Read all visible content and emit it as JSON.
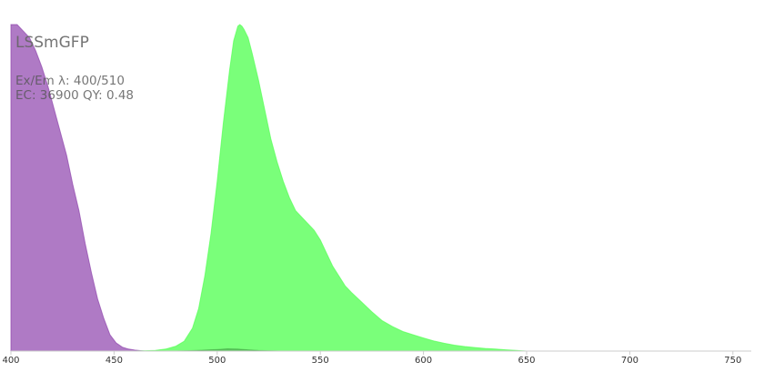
{
  "chart_data": {
    "type": "area",
    "title": "LSSmGFP",
    "info_lines": [
      "Ex/Em λ: 400/510",
      "EC: 36900  QY: 0.48"
    ],
    "xlabel": "",
    "ylabel": "",
    "xlim": [
      400,
      760
    ],
    "ylim": [
      0,
      1
    ],
    "x_ticks": [
      400,
      450,
      500,
      550,
      600,
      650,
      700,
      750
    ],
    "grid": false,
    "series": [
      {
        "role": "excitation",
        "color": "#9b59b6",
        "x": [
          400,
          403,
          406,
          409,
          412,
          415,
          418,
          421,
          424,
          427,
          430,
          433,
          436,
          439,
          442,
          445,
          448,
          451,
          454,
          457,
          460,
          465
        ],
        "y": [
          1.0,
          1.0,
          0.98,
          0.96,
          0.92,
          0.87,
          0.81,
          0.74,
          0.67,
          0.6,
          0.51,
          0.43,
          0.33,
          0.24,
          0.16,
          0.1,
          0.05,
          0.025,
          0.012,
          0.006,
          0.003,
          0.0
        ]
      },
      {
        "role": "emission",
        "color": "#55ff55",
        "x": [
          460,
          470,
          475,
          480,
          484,
          488,
          491,
          494,
          497,
          500,
          503,
          506,
          508,
          510,
          511,
          512,
          513,
          515,
          517,
          520,
          523,
          526,
          529,
          532,
          535,
          538,
          541,
          544,
          547,
          550,
          553,
          556,
          559,
          562,
          565,
          570,
          575,
          580,
          585,
          590,
          595,
          600,
          605,
          610,
          615,
          620,
          625,
          630,
          635,
          640,
          645,
          650
        ],
        "y": [
          0.0,
          0.002,
          0.006,
          0.015,
          0.03,
          0.07,
          0.13,
          0.23,
          0.36,
          0.52,
          0.7,
          0.86,
          0.95,
          0.995,
          1.0,
          0.995,
          0.985,
          0.96,
          0.91,
          0.83,
          0.74,
          0.65,
          0.58,
          0.52,
          0.47,
          0.43,
          0.41,
          0.39,
          0.37,
          0.34,
          0.3,
          0.26,
          0.23,
          0.2,
          0.18,
          0.15,
          0.12,
          0.093,
          0.075,
          0.06,
          0.05,
          0.04,
          0.031,
          0.024,
          0.018,
          0.014,
          0.011,
          0.008,
          0.006,
          0.004,
          0.002,
          0.0
        ]
      },
      {
        "role": "shadow",
        "color": "#2e7d32",
        "x": [
          420,
          480,
          490,
          500,
          505,
          510,
          515,
          520,
          530
        ],
        "y": [
          0.0,
          0.0,
          0.002,
          0.005,
          0.007,
          0.006,
          0.004,
          0.002,
          0.0
        ]
      }
    ]
  }
}
